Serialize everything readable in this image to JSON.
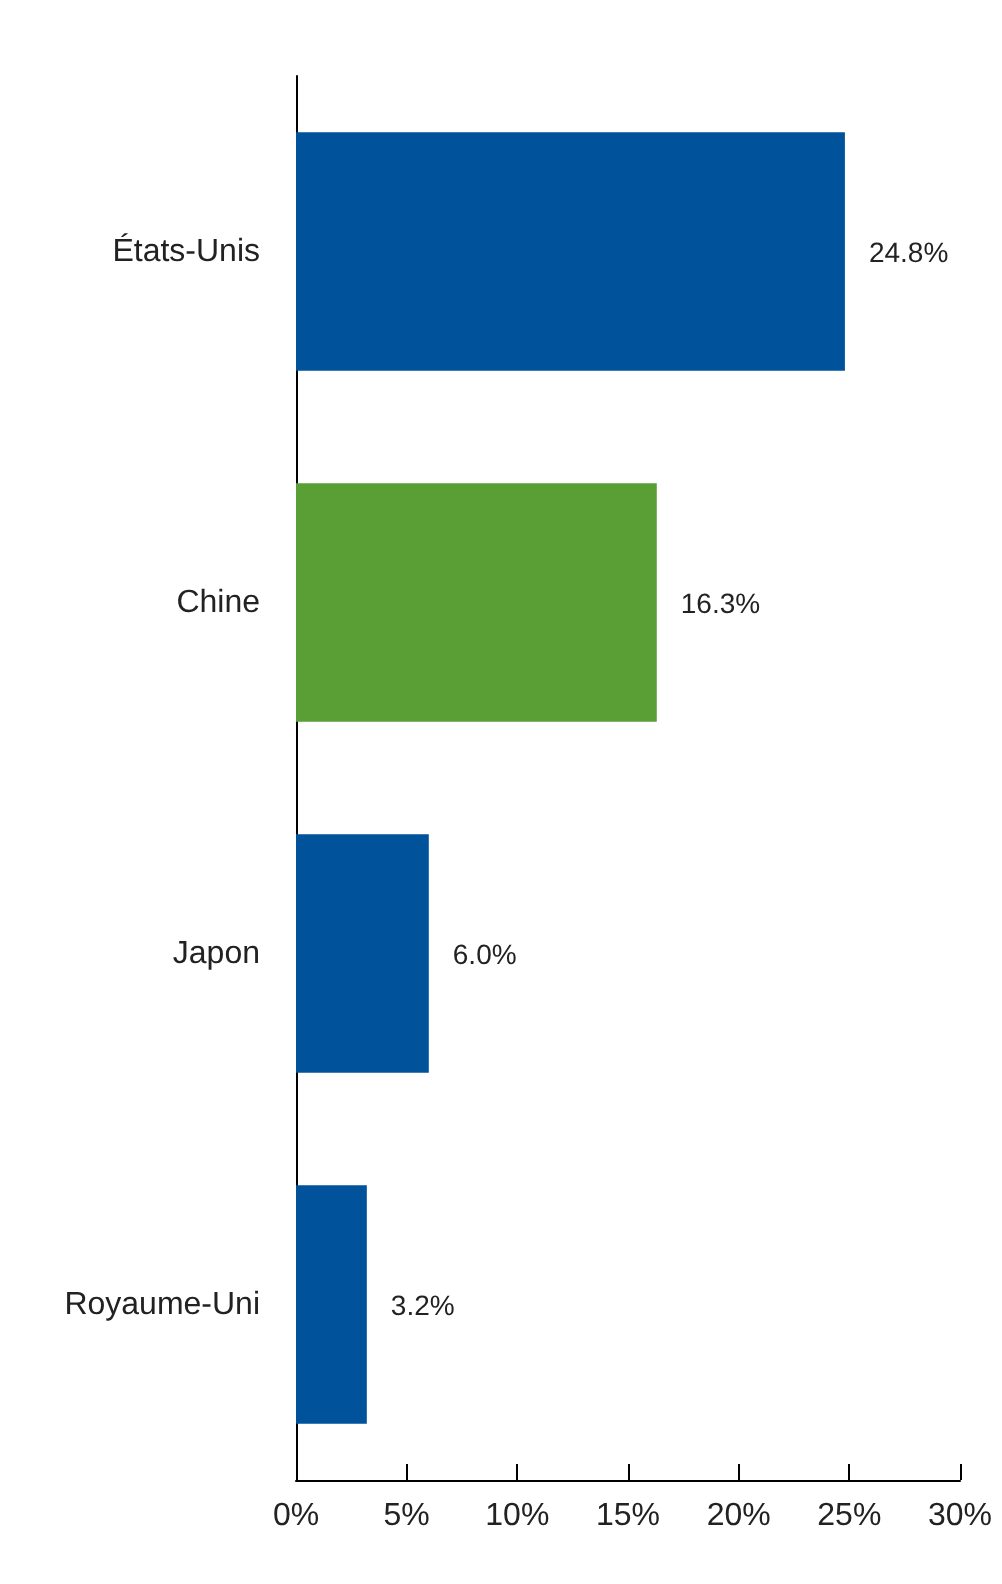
{
  "chart_data": {
    "type": "bar",
    "orientation": "horizontal",
    "categories": [
      "États-Unis",
      "Chine",
      "Japon",
      "Royaume-Uni"
    ],
    "values": [
      24.8,
      16.3,
      6.0,
      3.2
    ],
    "colors": [
      "#00529b",
      "#5a9e36",
      "#00529b",
      "#00529b"
    ],
    "value_labels": [
      "24.8%",
      "16.3%",
      "6.0%",
      "3.2%"
    ],
    "xlim": [
      0,
      30
    ],
    "xticks": [
      {
        "value": 0,
        "label": "0%"
      },
      {
        "value": 5,
        "label": "5%"
      },
      {
        "value": 10,
        "label": "10%"
      },
      {
        "value": 15,
        "label": "15%"
      },
      {
        "value": 20,
        "label": "20%"
      },
      {
        "value": 25,
        "label": "25%"
      },
      {
        "value": 30,
        "label": "30%"
      }
    ],
    "grid": false
  }
}
